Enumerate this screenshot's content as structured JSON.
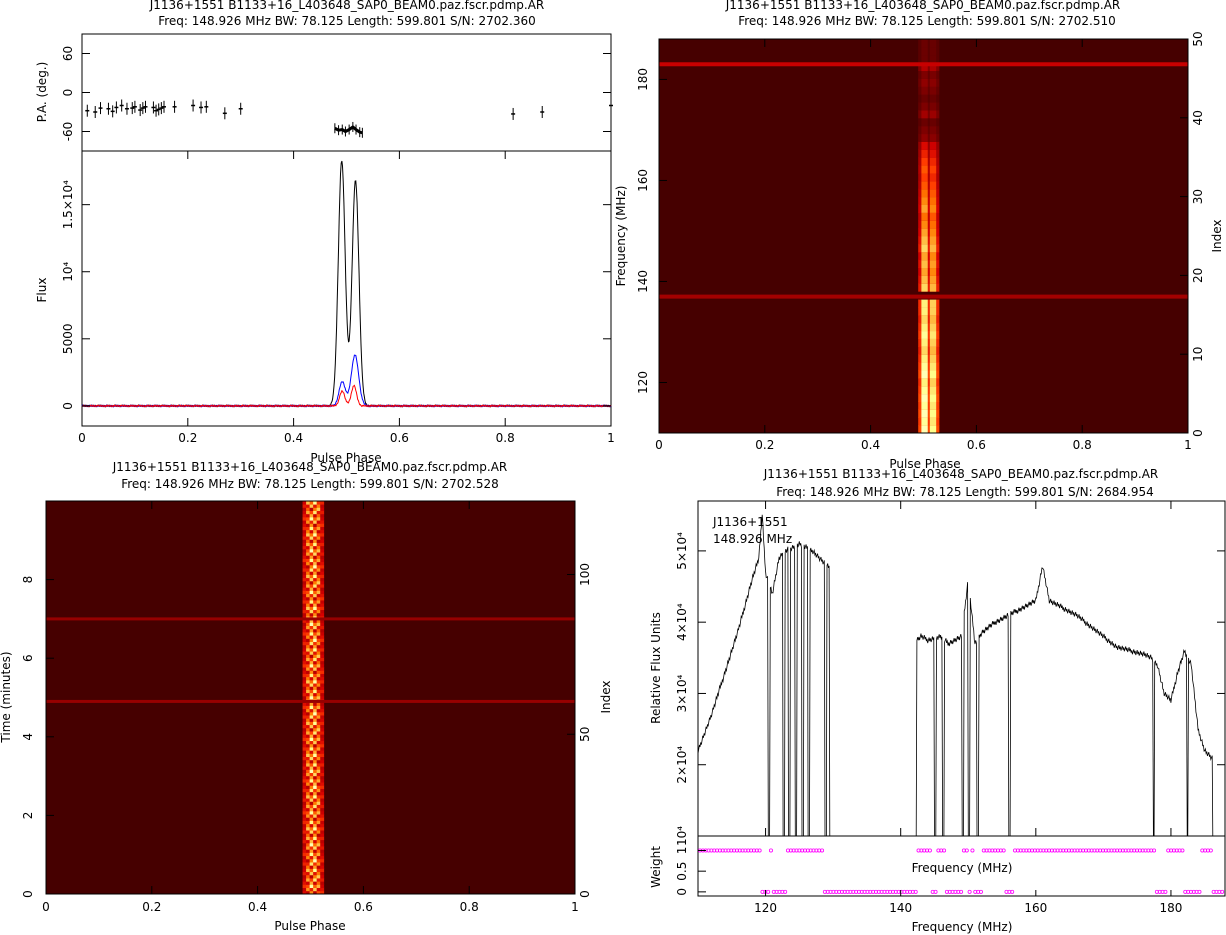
{
  "chart_data": [
    {
      "type": "line",
      "panel": "profile",
      "title": "J1136+1551  B1133+16_L403648_SAP0_BEAM0.paz.fscr.pdmp.AR",
      "subtitle": "Freq: 148.926 MHz  BW: 78.125  Length: 599.801  S/N: 2702.360",
      "pa": {
        "ylabel": "P.A. (deg.)",
        "ylim": [
          -90,
          90
        ],
        "yticks": [
          60,
          0,
          -60
        ],
        "points": [
          [
            0.01,
            -28
          ],
          [
            0.025,
            -30
          ],
          [
            0.035,
            -24
          ],
          [
            0.05,
            -25
          ],
          [
            0.058,
            -29
          ],
          [
            0.065,
            -23
          ],
          [
            0.075,
            -20
          ],
          [
            0.085,
            -25
          ],
          [
            0.095,
            -24
          ],
          [
            0.1,
            -22
          ],
          [
            0.11,
            -27
          ],
          [
            0.115,
            -24
          ],
          [
            0.12,
            -22
          ],
          [
            0.135,
            -23
          ],
          [
            0.14,
            -28
          ],
          [
            0.145,
            -26
          ],
          [
            0.15,
            -24
          ],
          [
            0.155,
            -22
          ],
          [
            0.175,
            -22
          ],
          [
            0.21,
            -20
          ],
          [
            0.225,
            -23
          ],
          [
            0.235,
            -22
          ],
          [
            0.27,
            -32
          ],
          [
            0.3,
            -25
          ],
          [
            0.815,
            -33
          ],
          [
            0.87,
            -30
          ],
          [
            1.0,
            -20
          ]
        ],
        "swing": [
          [
            0.478,
            -55
          ],
          [
            0.485,
            -58
          ],
          [
            0.492,
            -57
          ],
          [
            0.498,
            -60
          ],
          [
            0.505,
            -57
          ],
          [
            0.512,
            -53
          ],
          [
            0.518,
            -57
          ],
          [
            0.525,
            -61
          ],
          [
            0.53,
            -62
          ]
        ]
      },
      "xlabel": "Pulse Phase",
      "xlim": [
        0,
        1
      ],
      "xticks": [
        0,
        0.2,
        0.4,
        0.6,
        0.8,
        1
      ],
      "ylabel": "Flux",
      "ylim": [
        -1500,
        19000
      ],
      "yticks": [
        "0",
        "5000",
        "10⁴",
        "1.5×10⁴"
      ],
      "series": [
        {
          "color": "#000000",
          "peaks": [
            [
              0.491,
              18300,
              0.0065
            ],
            [
              0.517,
              16800,
              0.0065
            ]
          ]
        },
        {
          "color": "#0000ff",
          "peaks": [
            [
              0.492,
              1800,
              0.006
            ],
            [
              0.516,
              3800,
              0.007
            ]
          ]
        },
        {
          "color": "#ff0000",
          "peaks": [
            [
              0.492,
              1100,
              0.005
            ],
            [
              0.514,
              1500,
              0.005
            ]
          ]
        }
      ]
    },
    {
      "type": "heatmap",
      "panel": "freq-phase",
      "title": "J1136+1551  B1133+16_L403648_SAP0_BEAM0.paz.fscr.pdmp.AR",
      "subtitle": "Freq: 148.926 MHz  BW: 78.125  Length: 599.801  S/N: 2702.510",
      "xlabel": "Pulse Phase",
      "xlim": [
        0,
        1
      ],
      "xticks": [
        0,
        0.2,
        0.4,
        0.6,
        0.8,
        1
      ],
      "ylabel": "Frequency (MHz)",
      "ylim": [
        110,
        188
      ],
      "yticks": [
        120,
        140,
        160,
        180
      ],
      "y2label": "Index",
      "y2lim": [
        0,
        50
      ],
      "y2ticks": [
        0,
        10,
        20,
        30,
        40,
        50
      ],
      "pulse_phase": [
        0.49,
        0.53
      ],
      "channel_intensity": [
        0.95,
        0.9,
        0.95,
        0.9,
        0.95,
        0.9,
        0.85,
        0.95,
        0.9,
        0.85,
        0.8,
        0.85,
        0.9,
        0.85,
        0.8,
        0.85,
        0.85,
        0.0,
        0.8,
        0.75,
        0.7,
        0.75,
        0.7,
        0.8,
        0.75,
        0.7,
        0.65,
        0.6,
        0.7,
        0.65,
        0.6,
        0.55,
        0.5,
        0.55,
        0.5,
        0.45,
        0.4,
        0.2,
        0.15,
        0.1,
        0.25,
        0.15,
        0.1,
        0.15,
        0.2,
        0.15,
        0.3,
        0.1,
        0.1,
        0.1
      ]
    },
    {
      "type": "heatmap",
      "panel": "time-phase",
      "title": "J1136+1551  B1133+16_L403648_SAP0_BEAM0.paz.fscr.pdmp.AR",
      "subtitle": "Freq: 148.926 MHz  BW: 78.125  Length: 599.801  S/N: 2702.528",
      "xlabel": "Pulse Phase",
      "xlim": [
        0,
        1
      ],
      "xticks": [
        0,
        0.2,
        0.4,
        0.6,
        0.8,
        1
      ],
      "ylabel": "Time (minutes)",
      "ylim": [
        0,
        10
      ],
      "yticks": [
        0,
        2,
        4,
        6,
        8
      ],
      "y2label": "Index",
      "y2lim": [
        0,
        123
      ],
      "y2ticks": [
        0,
        50,
        100
      ],
      "pulse_phase": [
        0.485,
        0.525
      ],
      "subints": 123
    },
    {
      "type": "line",
      "panel": "bandpass",
      "title": "J1136+1551  B1133+16_L403648_SAP0_BEAM0.paz.fscr.pdmp.AR",
      "subtitle": "Freq: 148.926 MHz  BW: 78.125  Length: 599.801  S/N: 2684.954",
      "annotations": [
        "J1136+1551",
        "148.926 MHz"
      ],
      "xlabel": "Frequency (MHz)",
      "xlim": [
        110,
        188
      ],
      "xticks": [
        120,
        140,
        160,
        180
      ],
      "ylabel": "Relative Flux Units",
      "ylim": [
        10000,
        57000
      ],
      "yticks": [
        "10⁴",
        "2×10⁴",
        "3×10⁴",
        "4×10⁴",
        "5×10⁴"
      ],
      "x": [
        110,
        112,
        114,
        116,
        118,
        119,
        119.5,
        120,
        121,
        122,
        123,
        124,
        125,
        126,
        127,
        128,
        129,
        142,
        143,
        144,
        146,
        147,
        148,
        149,
        150,
        151,
        152,
        154,
        156,
        158,
        160,
        161,
        162,
        164,
        166,
        168,
        170,
        172,
        174,
        176,
        177,
        178,
        179,
        180,
        181,
        182,
        183,
        184,
        185,
        186,
        187
      ],
      "values": [
        22000,
        27000,
        33000,
        39000,
        46000,
        49000,
        55000,
        47000,
        44000,
        49000,
        50000,
        50500,
        51000,
        50500,
        50000,
        49000,
        48000,
        37000,
        38000,
        37500,
        38000,
        37000,
        37500,
        38000,
        46000,
        37000,
        38500,
        40000,
        41000,
        42000,
        43000,
        48000,
        43000,
        42000,
        41000,
        39500,
        38000,
        36500,
        36000,
        35500,
        35000,
        34000,
        30000,
        29000,
        33000,
        36000,
        34000,
        25000,
        22000,
        21000,
        20000
      ],
      "gaps": [
        [
          120.4,
          120.6
        ],
        [
          122.6,
          122.8
        ],
        [
          123.4,
          123.6
        ],
        [
          124.4,
          124.6
        ],
        [
          125.4,
          125.6
        ],
        [
          126.3,
          126.5
        ],
        [
          128.8,
          129.0
        ],
        [
          129.5,
          142.3
        ],
        [
          145.0,
          145.2
        ],
        [
          146.2,
          146.4
        ],
        [
          149.1,
          149.3
        ],
        [
          150.0,
          150.2
        ],
        [
          151.3,
          151.5
        ],
        [
          156.0,
          156.2
        ],
        [
          177.4,
          177.6
        ],
        [
          182.4,
          182.6
        ],
        [
          186.2,
          188
        ]
      ]
    },
    {
      "type": "scatter",
      "panel": "weights",
      "ylabel": "Weight",
      "ylim": [
        -0.1,
        1.35
      ],
      "yticks": [
        "0",
        "0.5",
        "1"
      ],
      "xlabel": "Frequency (MHz)",
      "inner_xlabel": "Frequency (MHz)",
      "zero_ranges": [
        [
          119.5,
          120.5
        ],
        [
          121,
          123
        ],
        [
          128.5,
          142.5
        ],
        [
          144.5,
          145.5
        ],
        [
          146.5,
          149
        ],
        [
          150,
          150.5
        ],
        [
          151,
          152
        ],
        [
          155.5,
          156.5
        ],
        [
          177.5,
          179.5
        ],
        [
          182,
          184.5
        ],
        [
          186,
          188
        ]
      ]
    }
  ]
}
